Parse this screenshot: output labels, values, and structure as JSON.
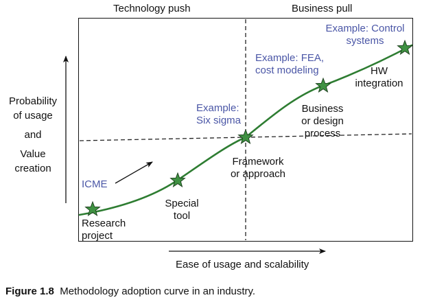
{
  "headers": {
    "left": "Technology push",
    "right": "Business pull"
  },
  "y_axis_label": [
    "Probability",
    "of usage",
    "and",
    "Value",
    "creation"
  ],
  "x_axis_label": "Ease of usage and scalability",
  "stages": {
    "research_project": [
      "Research",
      "project"
    ],
    "special_tool": [
      "Special",
      "tool"
    ],
    "framework": [
      "Framework",
      "or approach"
    ],
    "business_process": [
      "Business",
      "or design",
      "process"
    ],
    "hw_integration": [
      "HW",
      "integration"
    ]
  },
  "examples": {
    "icme": "ICME",
    "six_sigma": [
      "Example:",
      "Six sigma"
    ],
    "fea": [
      "Example: FEA,",
      "cost modeling"
    ],
    "control": [
      "Example: Control",
      "systems"
    ]
  },
  "caption": {
    "number": "Figure 1.8",
    "text": "Methodology adoption curve in an industry."
  },
  "colors": {
    "curve": "#2e7d32",
    "star_fill": "#3f9142",
    "example_text": "#4a56a6"
  }
}
